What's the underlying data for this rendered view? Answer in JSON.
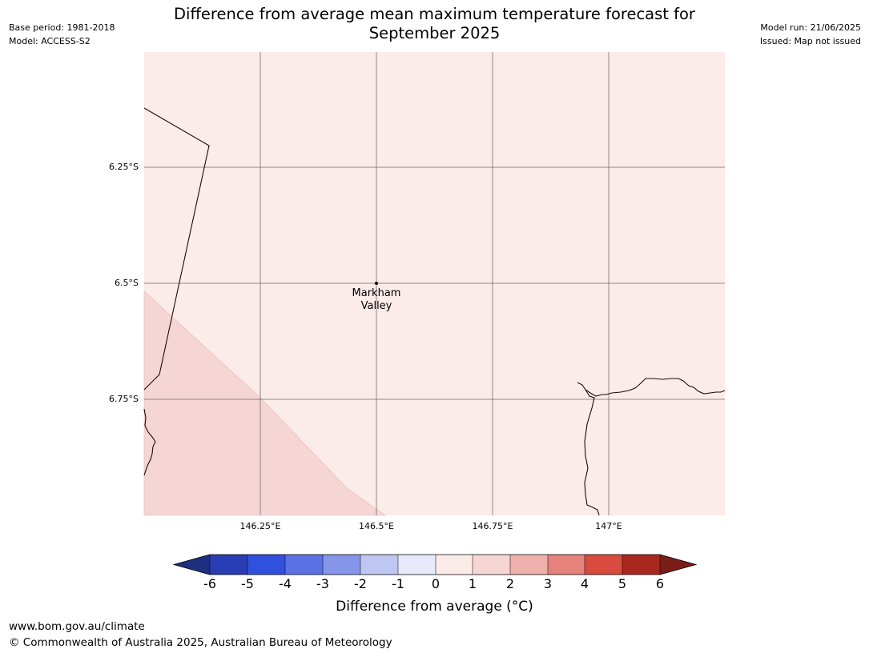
{
  "header": {
    "title_line1": "Difference from average mean maximum temperature forecast for",
    "title_line2": "September 2025",
    "base_period": "Base period: 1981-2018",
    "model": "Model: ACCESS-S2",
    "model_run": "Model run: 21/06/2025",
    "issued": "Issued: Map not issued"
  },
  "map": {
    "latitude_labels": [
      "6.25°S",
      "6.5°S",
      "6.75°S"
    ],
    "longitude_labels": [
      "146.25°E",
      "146.5°E",
      "146.75°E",
      "147°E"
    ],
    "place": {
      "name_line1": "Markham",
      "name_line2": "Valley"
    },
    "shading_colors": {
      "background": "#fbebe9",
      "zone": "#f5d6d4"
    }
  },
  "colorbar": {
    "ticks": [
      "-6",
      "-5",
      "-4",
      "-3",
      "-2",
      "-1",
      "0",
      "1",
      "2",
      "3",
      "4",
      "5",
      "6"
    ],
    "label": "Difference from average (°C)",
    "colors": [
      "#1f2f80",
      "#283db4",
      "#3150de",
      "#5b72e4",
      "#8595ea",
      "#bec6f2",
      "#e7e9fb",
      "#fbebe9",
      "#f5d6d4",
      "#edb0ab",
      "#e5827b",
      "#d94b3e",
      "#a82820",
      "#7a1d18"
    ]
  },
  "footer": {
    "url": "www.bom.gov.au/climate",
    "copyright": "© Commonwealth of Australia 2025, Australian Bureau of Meteorology"
  }
}
